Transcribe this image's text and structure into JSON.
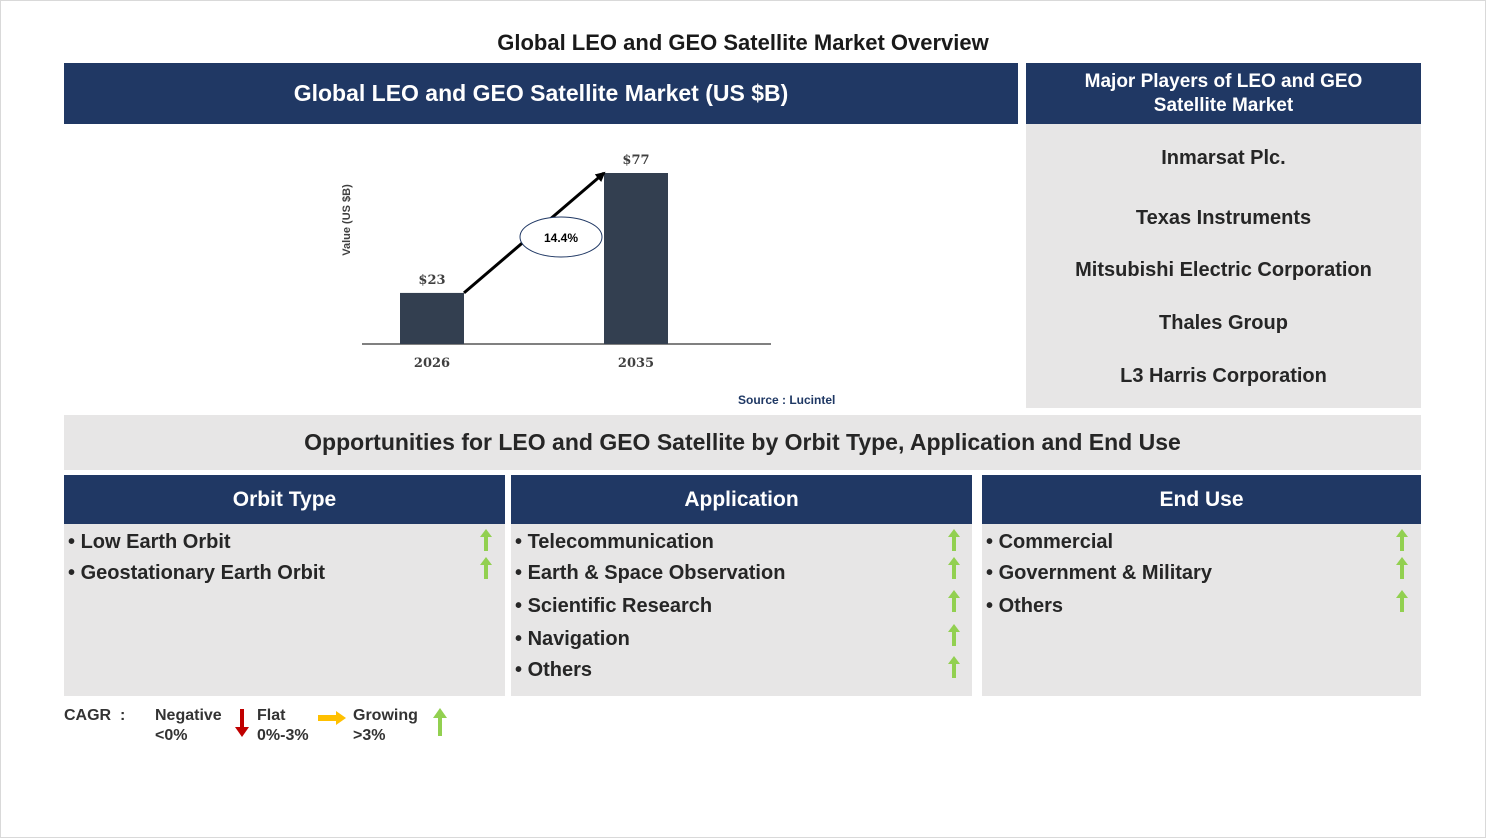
{
  "title": "Global LEO and GEO Satellite Market Overview",
  "chart_panel": {
    "header": "Global LEO and GEO Satellite Market (US $B)",
    "source": "Source : Lucintel"
  },
  "chart_data": {
    "type": "bar",
    "categories": [
      "2026",
      "2035"
    ],
    "values": [
      23,
      77
    ],
    "value_labels": [
      "$23",
      "$77"
    ],
    "ylabel": "Value (US $B)",
    "cagr_label": "14.4%",
    "bar_color": "#333f50"
  },
  "players": {
    "header": "Major Players of LEO and GEO Satellite Market",
    "items": [
      "Inmarsat Plc.",
      "Texas Instruments",
      "Mitsubishi Electric Corporation",
      "Thales Group",
      "L3 Harris Corporation"
    ]
  },
  "opportunities": {
    "title": "Opportunities for LEO and GEO Satellite by Orbit Type, Application and End Use",
    "segments": [
      {
        "header": "Orbit Type",
        "items": [
          {
            "label": "Low Earth Orbit",
            "trend": "growing"
          },
          {
            "label": "Geostationary Earth Orbit",
            "trend": "growing"
          }
        ]
      },
      {
        "header": "Application",
        "items": [
          {
            "label": "Telecommunication",
            "trend": "growing"
          },
          {
            "label": "Earth & Space Observation",
            "trend": "growing"
          },
          {
            "label": "Scientific Research",
            "trend": "growing"
          },
          {
            "label": "Navigation",
            "trend": "growing"
          },
          {
            "label": "Others",
            "trend": "growing"
          }
        ]
      },
      {
        "header": "End Use",
        "items": [
          {
            "label": "Commercial",
            "trend": "growing"
          },
          {
            "label": "Government & Military",
            "trend": "growing"
          },
          {
            "label": "Others",
            "trend": "growing"
          }
        ]
      }
    ]
  },
  "legend": {
    "label": "CAGR",
    "separator": ":",
    "negative": {
      "name": "Negative",
      "range": "<0%",
      "icon": "down-arrow-icon",
      "color": "#c00000"
    },
    "flat": {
      "name": "Flat",
      "range": "0%-3%",
      "icon": "right-arrow-icon",
      "color": "#ffc000"
    },
    "growing": {
      "name": "Growing",
      "range": ">3%",
      "icon": "up-arrow-icon",
      "color": "#92d050"
    }
  },
  "colors": {
    "navy": "#203864",
    "grey_panel": "#e7e6e6",
    "growth_green": "#92d050"
  }
}
